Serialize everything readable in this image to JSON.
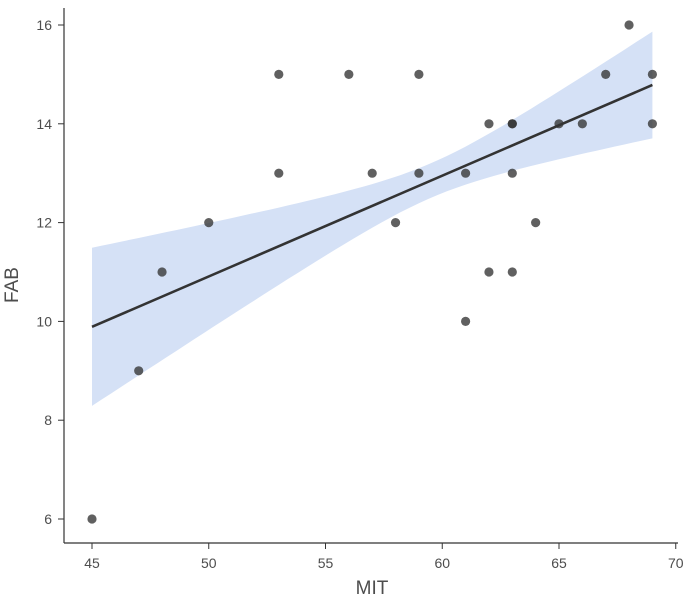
{
  "chart_data": {
    "type": "scatter",
    "title": "",
    "xlabel": "MIT",
    "ylabel": "FAB",
    "xlim": [
      44,
      70.2
    ],
    "ylim": [
      5.5,
      16.4
    ],
    "xticks": [
      45,
      50,
      55,
      60,
      65,
      70
    ],
    "yticks": [
      6,
      8,
      10,
      12,
      14,
      16
    ],
    "grid": false,
    "points": [
      [
        45,
        6
      ],
      [
        47,
        9
      ],
      [
        48,
        11
      ],
      [
        50,
        12
      ],
      [
        53,
        15
      ],
      [
        53,
        13
      ],
      [
        56,
        15
      ],
      [
        57,
        13
      ],
      [
        58,
        12
      ],
      [
        59,
        15
      ],
      [
        59,
        13
      ],
      [
        61,
        13
      ],
      [
        61,
        10
      ],
      [
        62,
        14
      ],
      [
        62,
        11
      ],
      [
        63,
        14
      ],
      [
        63,
        14
      ],
      [
        63,
        13
      ],
      [
        63,
        11
      ],
      [
        64,
        12
      ],
      [
        65,
        14
      ],
      [
        66,
        14
      ],
      [
        67,
        15
      ],
      [
        68,
        16
      ],
      [
        69,
        15
      ],
      [
        69,
        14
      ]
    ],
    "regression": {
      "x_range": [
        45,
        69
      ],
      "intercept": 0.71,
      "slope": 0.204,
      "ci_halfwidth_at_start": 1.6,
      "ci_halfwidth_at_end": 1.08,
      "ci_halfwidth_min": 0.35,
      "ci_center_x": 59.5
    },
    "colors": {
      "points": "#333333",
      "line": "#333333",
      "band": "#d5e1f6",
      "axis": "#333333"
    }
  }
}
